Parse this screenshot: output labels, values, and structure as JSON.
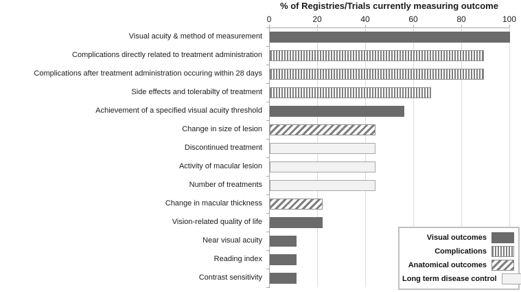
{
  "chart_data": {
    "type": "bar",
    "orientation": "horizontal",
    "title": "% of Registries/Trials currently measuring outcome",
    "xlabel": "",
    "ylabel": "",
    "xlim": [
      0,
      100
    ],
    "x_ticks": [
      0,
      20,
      40,
      60,
      80,
      100
    ],
    "grid": true,
    "categories": [
      "Visual acuity & method of measurement",
      "Complications directly related to treatment administration",
      "Complications after treatment administration occuring within 28 days",
      "Side effects and tolerabilty of treatment",
      "Achievement of a specified visual acuity threshold",
      "Change in size of lesion",
      "Discontinued treatment",
      "Activity of macular lesion",
      "Number of treatments",
      "Change in macular thickness",
      "Vision-related quality of life",
      "Near visual acuity",
      "Reading index",
      "Contrast sensitivity"
    ],
    "values": [
      100,
      89,
      89,
      67,
      56,
      44,
      44,
      44,
      44,
      22,
      22,
      11,
      11,
      11
    ],
    "patterns": [
      "solid",
      "vstripe",
      "vstripe",
      "vstripe",
      "solid",
      "dstripe",
      "plain",
      "plain",
      "plain",
      "dstripe",
      "solid",
      "solid",
      "solid",
      "solid"
    ],
    "legend_position": "bottom-right",
    "legend": [
      {
        "label": "Visual outcomes",
        "pattern": "solid"
      },
      {
        "label": "Complications",
        "pattern": "vstripe"
      },
      {
        "label": "Anatomical outcomes",
        "pattern": "dstripe"
      },
      {
        "label": "Long term disease control",
        "pattern": "plain"
      }
    ],
    "colors": {
      "solid_bar": "#6b6b6b",
      "stripe_gray": "#7e7e7e",
      "plain_fill": "#f2f2f2",
      "plain_border": "#a6a6a6",
      "bar_border": "#8c8c8c",
      "axis": "#a6a6a6",
      "gridline": "#dadada"
    }
  }
}
